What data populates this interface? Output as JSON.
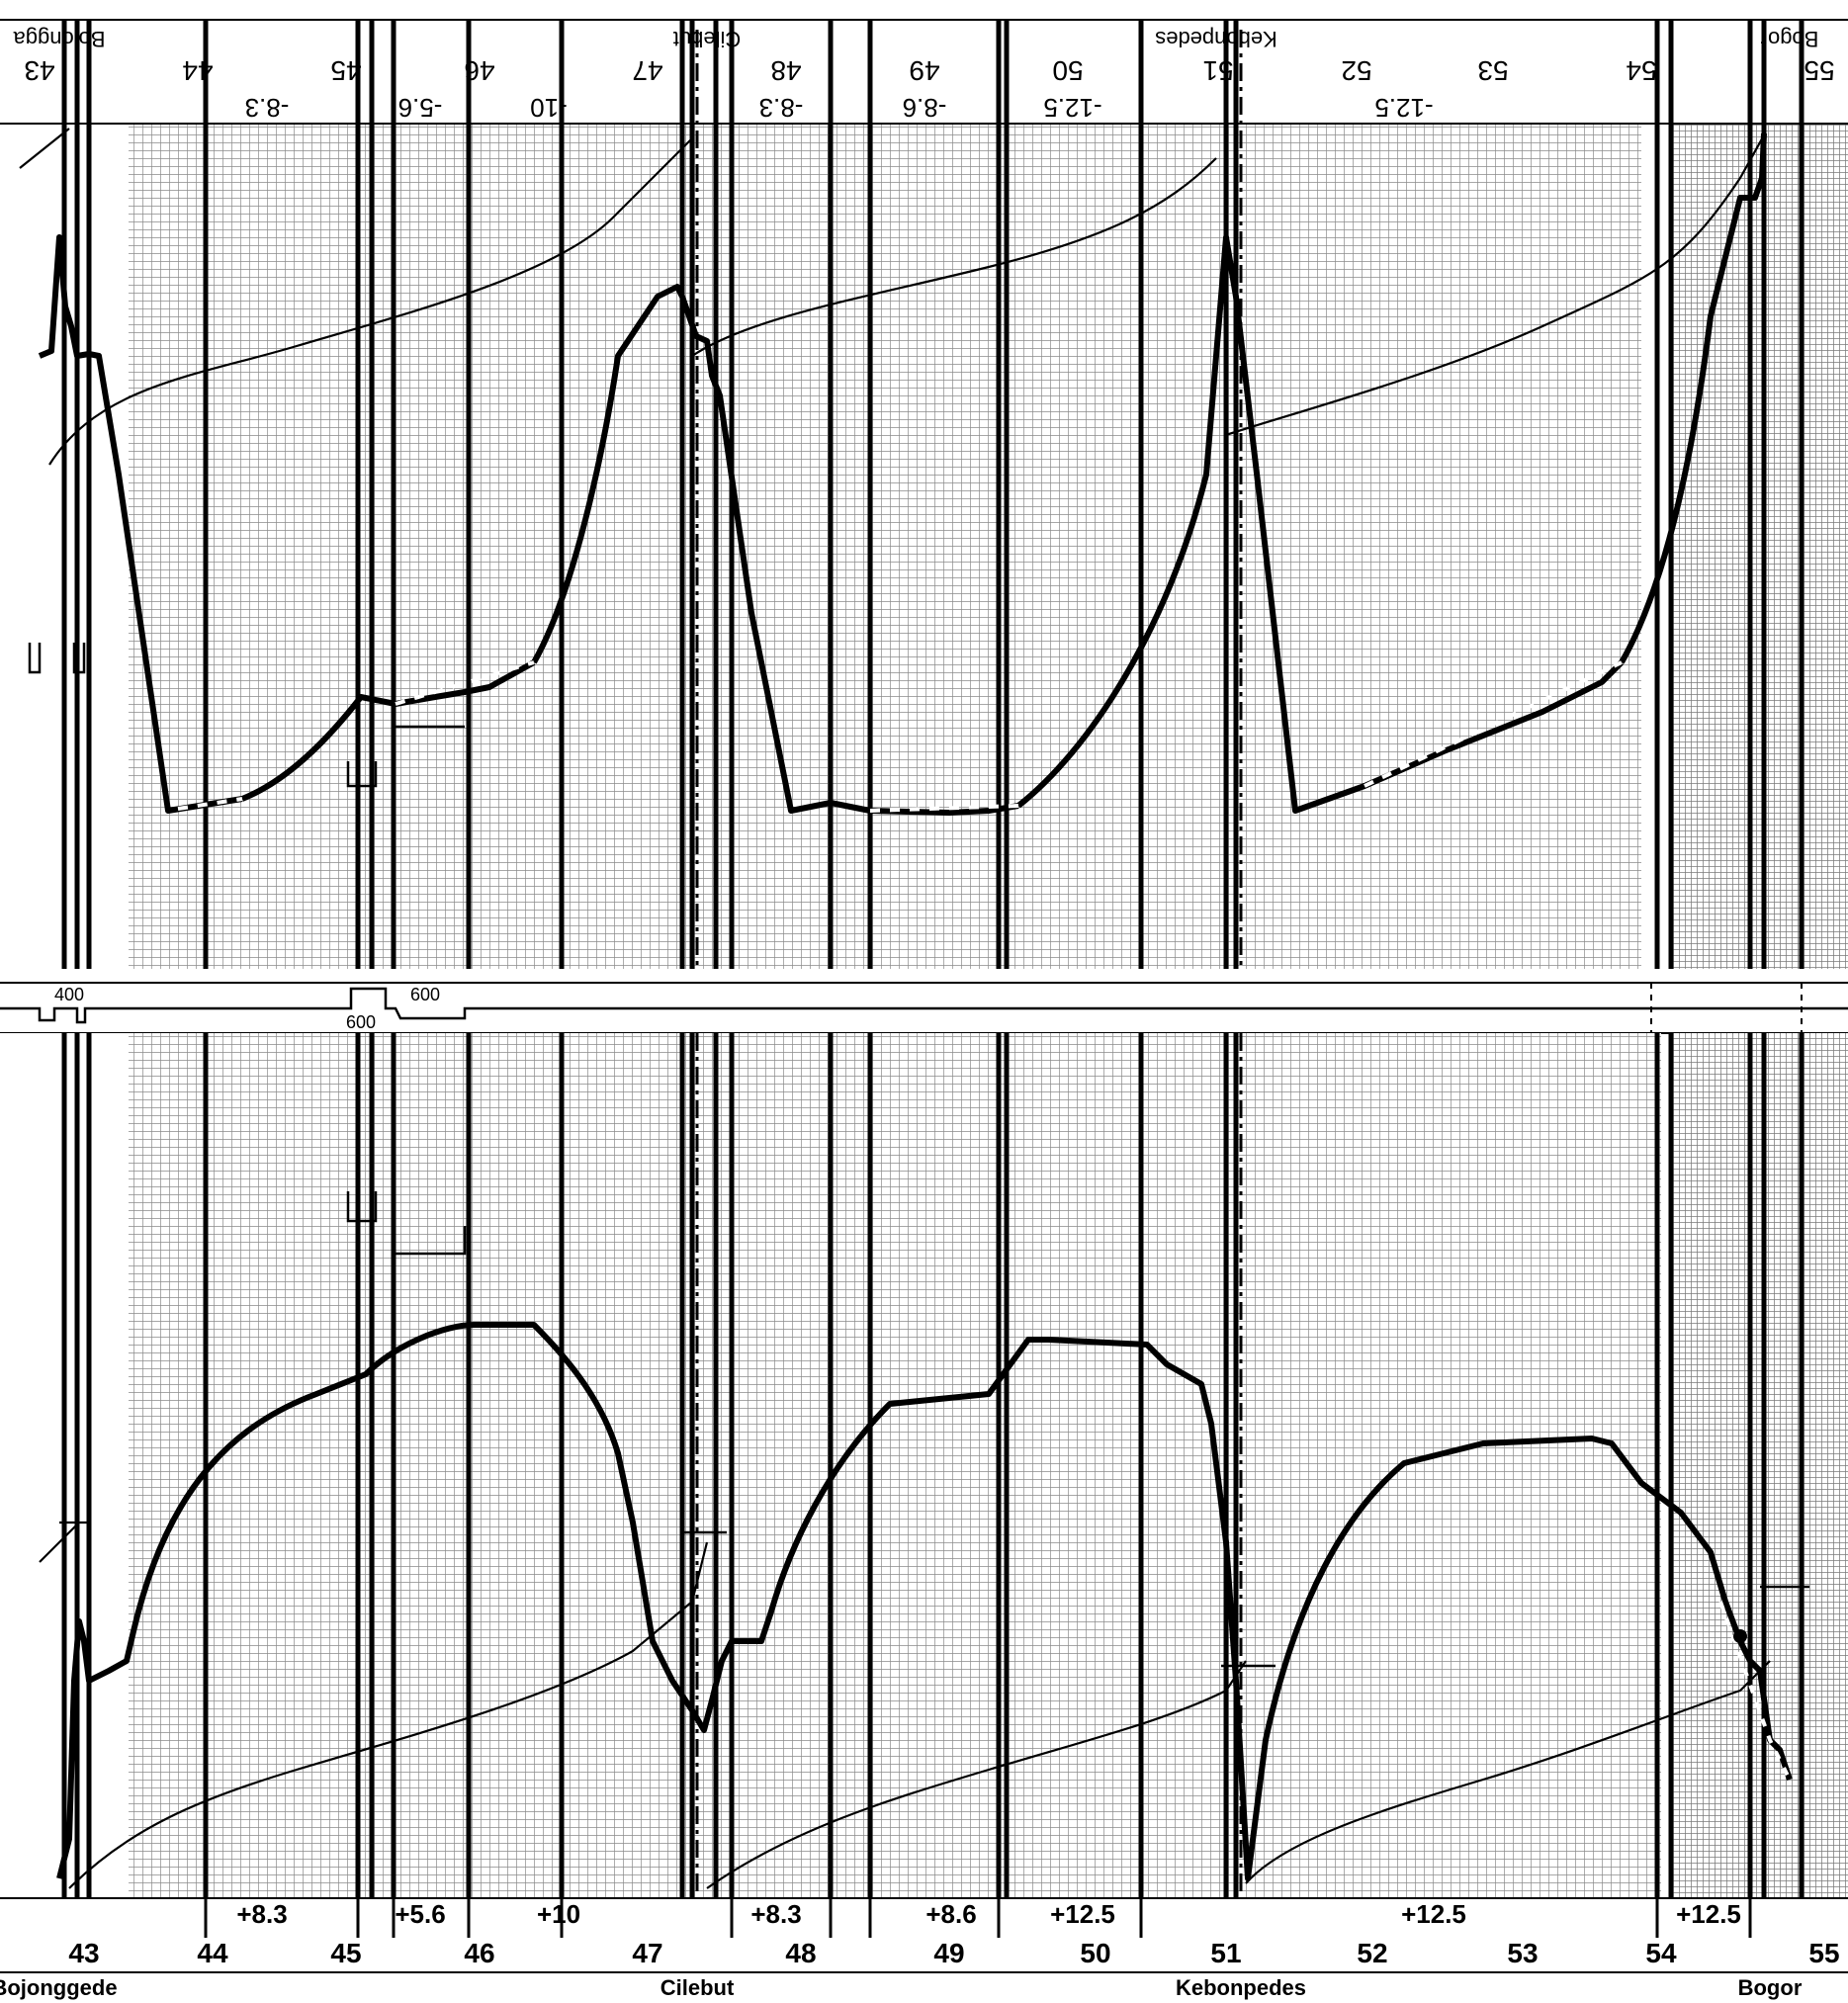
{
  "upper_panel": {
    "header_stations": [
      "Bojongga",
      "Cilebut",
      "Kebonpedes",
      "Bogor"
    ],
    "km_posts": [
      "43",
      "44",
      "45",
      "46",
      "47",
      "48",
      "49",
      "50",
      "51",
      "52",
      "53",
      "54",
      "55"
    ],
    "gradient_labels": [
      "-8.3",
      "-5.6",
      "-10",
      "-8.3",
      "-8.6",
      "-12.5",
      "-12.5"
    ]
  },
  "middle_strip": {
    "labels": [
      "400",
      "600",
      "600"
    ]
  },
  "lower_panel": {
    "gradient_labels": [
      "+8.3",
      "+5.6",
      "+10",
      "+8.3",
      "+8.6",
      "+12.5",
      "+12.5",
      "+12.5"
    ],
    "km_posts": [
      "43",
      "44",
      "45",
      "46",
      "47",
      "48",
      "49",
      "50",
      "51",
      "52",
      "53",
      "54",
      "55"
    ],
    "footer_stations": [
      "Bojonggede",
      "Cilebut",
      "Kebonpedes",
      "Bogor"
    ]
  },
  "colors": {
    "ink": "#000000",
    "paper": "#ffffff",
    "grid": "#9e9e9e"
  }
}
